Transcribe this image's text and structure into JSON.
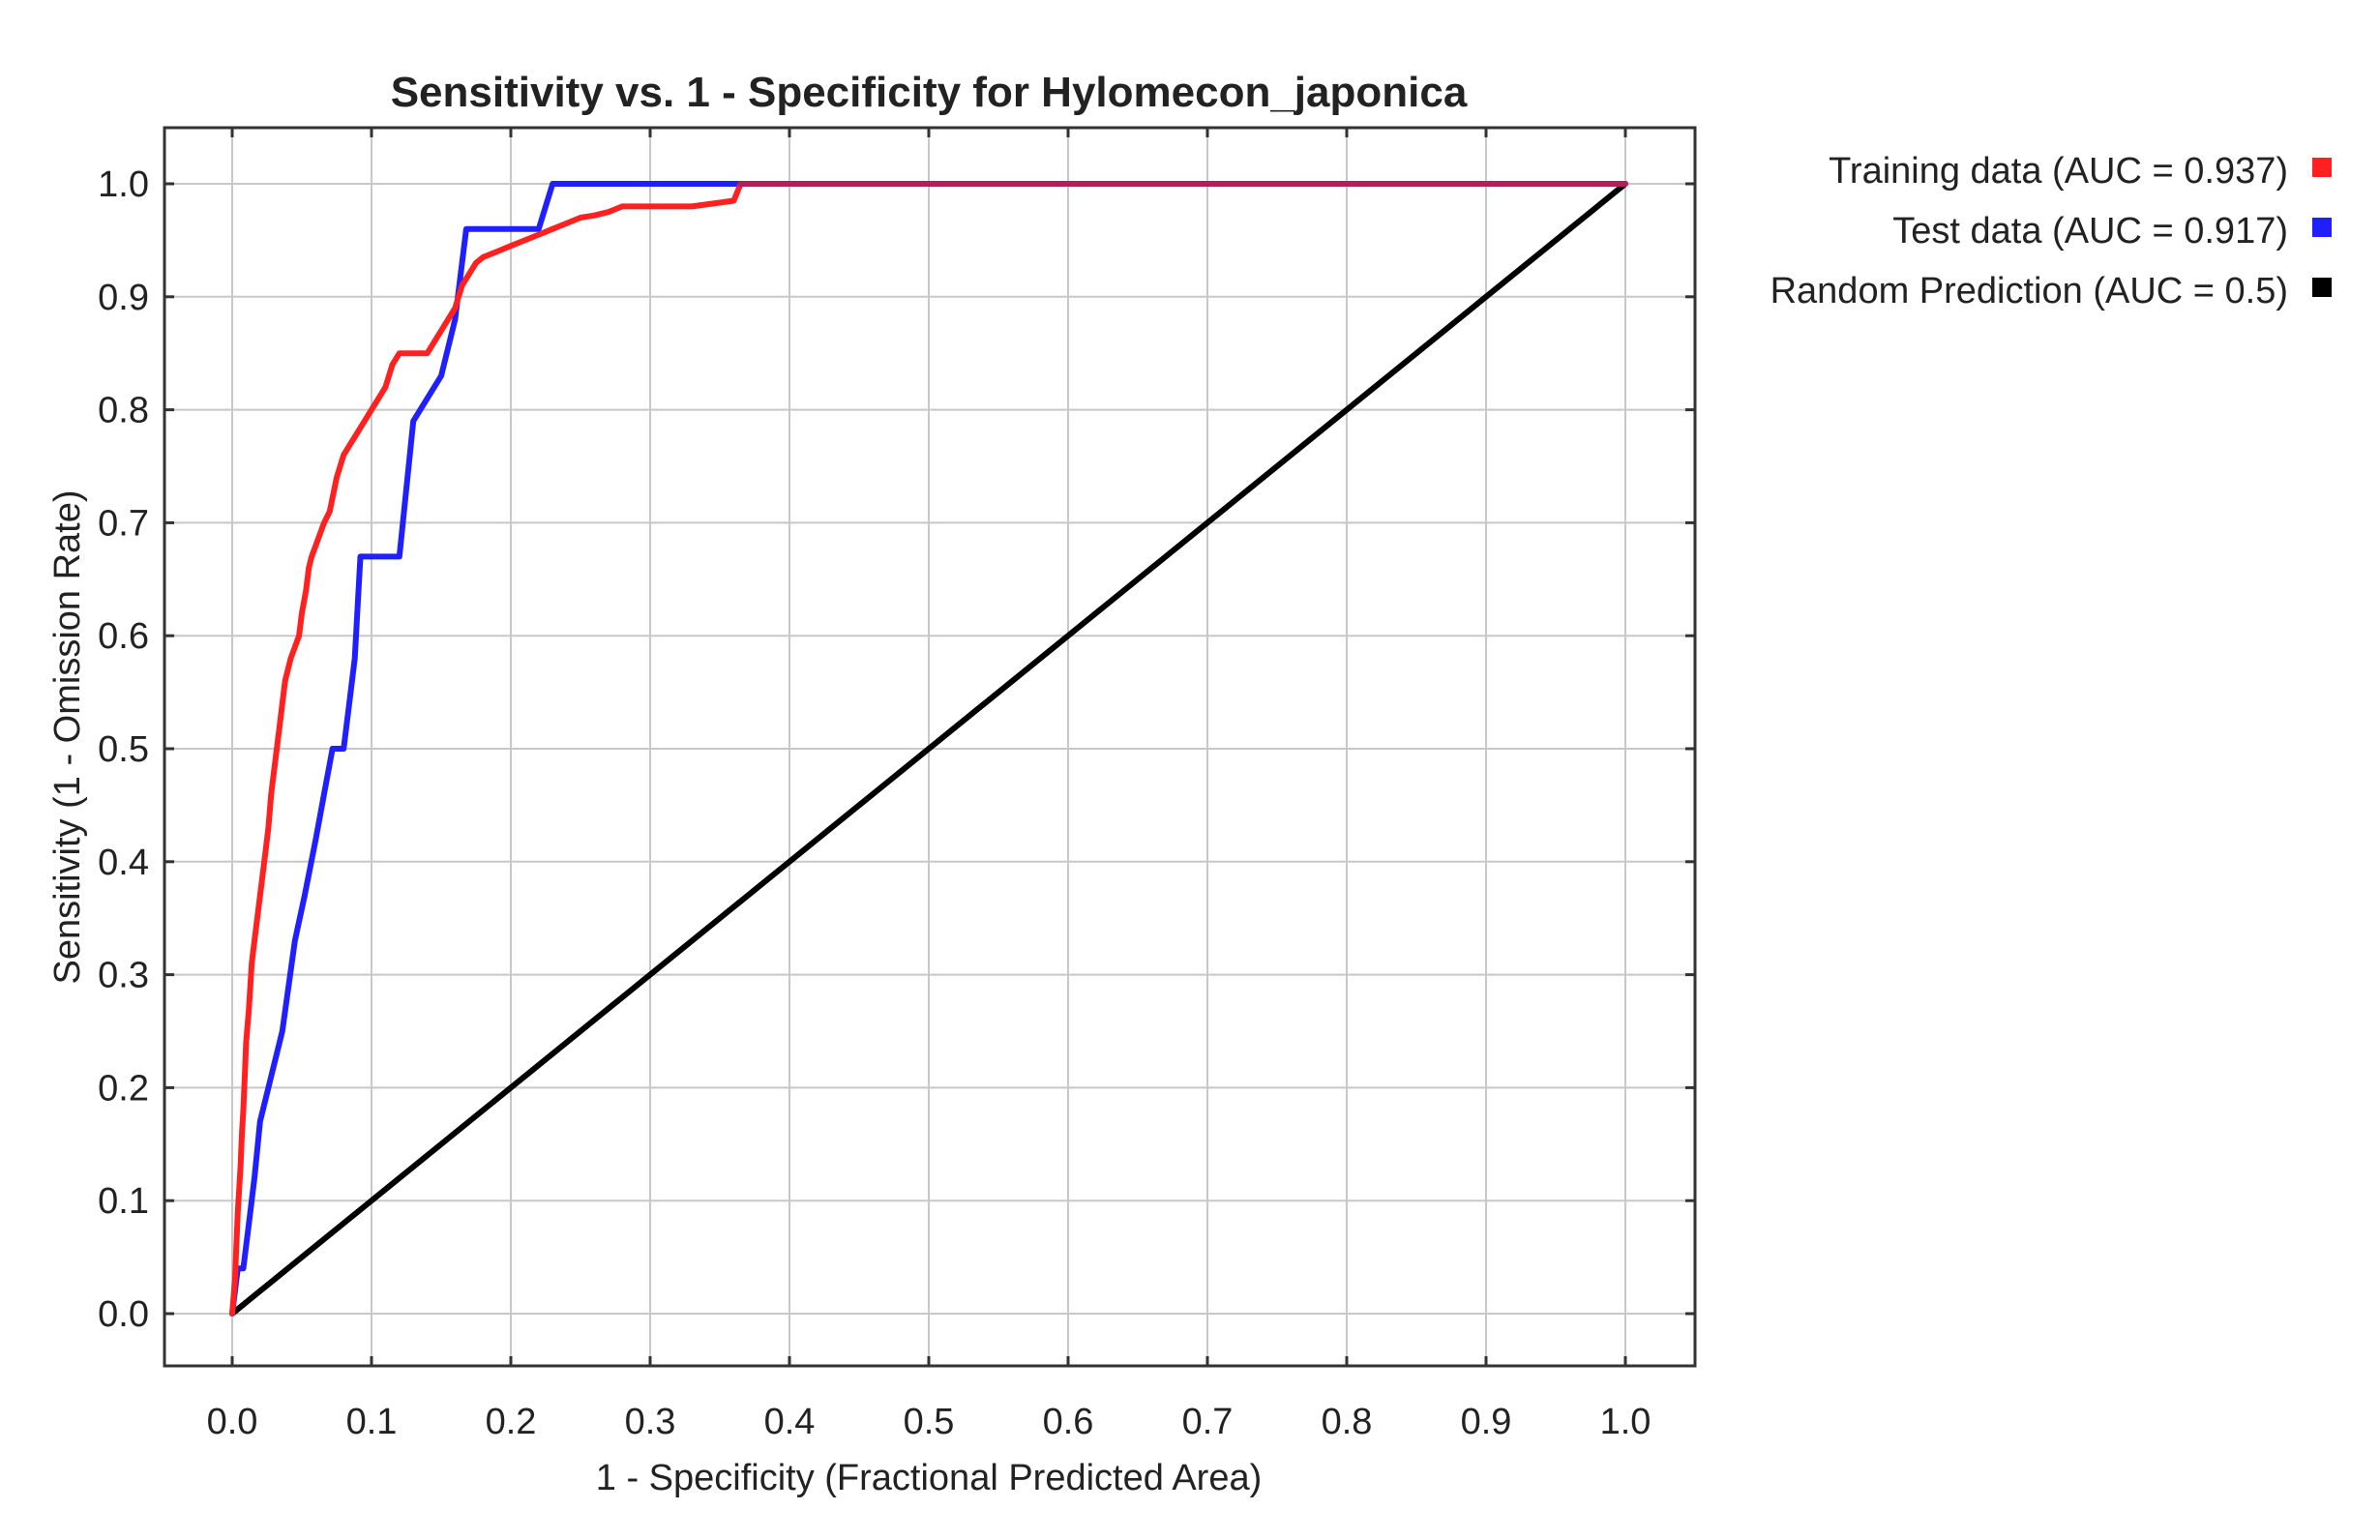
{
  "chart_data": {
    "type": "line",
    "title": "Sensitivity vs. 1 - Specificity for Hylomecon_japonica",
    "xlabel": "1 - Specificity  (Fractional Predicted Area)",
    "ylabel": "Sensitivity  (1 - Omission Rate)",
    "xlim": [
      0.0,
      1.0
    ],
    "ylim": [
      0.0,
      1.0
    ],
    "grid": true,
    "legend_position": "right",
    "x_ticks": [
      "0.0",
      "0.1",
      "0.2",
      "0.3",
      "0.4",
      "0.5",
      "0.6",
      "0.7",
      "0.8",
      "0.9",
      "1.0"
    ],
    "y_ticks": [
      "0.0",
      "0.1",
      "0.2",
      "0.3",
      "0.4",
      "0.5",
      "0.6",
      "0.7",
      "0.8",
      "0.9",
      "1.0"
    ],
    "series": [
      {
        "name": "Training data (AUC = 0.937)",
        "color": "#ff2020",
        "x": [
          0.0,
          0.002,
          0.003,
          0.004,
          0.005,
          0.006,
          0.007,
          0.008,
          0.009,
          0.01,
          0.012,
          0.014,
          0.016,
          0.018,
          0.02,
          0.022,
          0.024,
          0.026,
          0.028,
          0.03,
          0.032,
          0.034,
          0.036,
          0.038,
          0.04,
          0.042,
          0.045,
          0.048,
          0.05,
          0.053,
          0.055,
          0.057,
          0.06,
          0.063,
          0.066,
          0.07,
          0.075,
          0.08,
          0.085,
          0.09,
          0.095,
          0.1,
          0.105,
          0.11,
          0.115,
          0.12,
          0.13,
          0.14,
          0.15,
          0.16,
          0.165,
          0.17,
          0.175,
          0.18,
          0.19,
          0.2,
          0.21,
          0.22,
          0.23,
          0.24,
          0.25,
          0.26,
          0.27,
          0.28,
          0.3,
          0.33,
          0.36,
          0.365,
          0.4,
          0.5,
          0.6,
          0.7,
          0.8,
          0.9,
          1.0
        ],
        "y": [
          0.0,
          0.03,
          0.06,
          0.09,
          0.11,
          0.13,
          0.16,
          0.18,
          0.21,
          0.24,
          0.27,
          0.31,
          0.33,
          0.35,
          0.37,
          0.39,
          0.41,
          0.43,
          0.46,
          0.48,
          0.5,
          0.52,
          0.54,
          0.56,
          0.57,
          0.58,
          0.59,
          0.6,
          0.62,
          0.64,
          0.66,
          0.67,
          0.68,
          0.69,
          0.7,
          0.71,
          0.74,
          0.76,
          0.77,
          0.78,
          0.79,
          0.8,
          0.81,
          0.82,
          0.84,
          0.85,
          0.85,
          0.85,
          0.87,
          0.89,
          0.91,
          0.92,
          0.93,
          0.935,
          0.94,
          0.945,
          0.95,
          0.955,
          0.96,
          0.965,
          0.97,
          0.972,
          0.975,
          0.98,
          0.98,
          0.98,
          0.985,
          1.0,
          1.0,
          1.0,
          1.0,
          1.0,
          1.0,
          1.0,
          1.0
        ]
      },
      {
        "name": "Test data (AUC = 0.917)",
        "color": "#2020ff",
        "x": [
          0.0,
          0.004,
          0.008,
          0.012,
          0.016,
          0.02,
          0.028,
          0.036,
          0.045,
          0.052,
          0.06,
          0.066,
          0.072,
          0.08,
          0.084,
          0.088,
          0.092,
          0.12,
          0.13,
          0.15,
          0.16,
          0.168,
          0.2,
          0.22,
          0.23,
          0.3,
          0.4,
          0.5,
          0.6,
          0.7,
          0.8,
          0.9,
          1.0
        ],
        "y": [
          0.0,
          0.04,
          0.04,
          0.08,
          0.12,
          0.17,
          0.21,
          0.25,
          0.33,
          0.37,
          0.42,
          0.46,
          0.5,
          0.5,
          0.54,
          0.58,
          0.67,
          0.67,
          0.79,
          0.83,
          0.88,
          0.96,
          0.96,
          0.96,
          1.0,
          1.0,
          1.0,
          1.0,
          1.0,
          1.0,
          1.0,
          1.0,
          1.0
        ]
      },
      {
        "name": "Random Prediction (AUC = 0.5)",
        "color": "#000000",
        "x": [
          0.0,
          1.0
        ],
        "y": [
          0.0,
          1.0
        ]
      }
    ],
    "overlap_color": "#b0205a"
  }
}
